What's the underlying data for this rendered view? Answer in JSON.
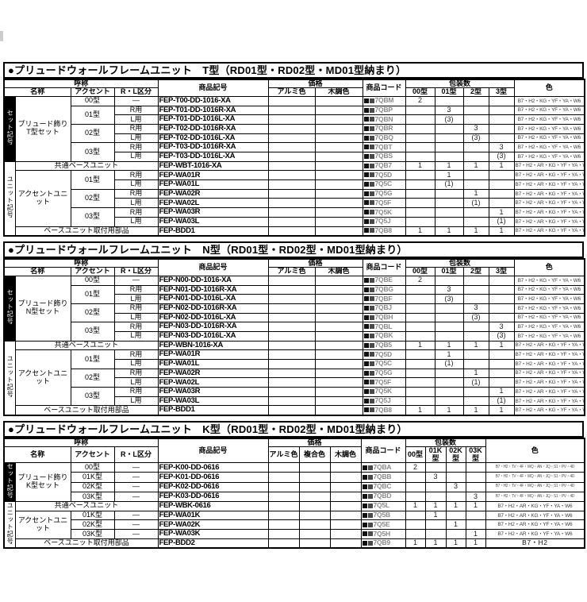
{
  "labels": {
    "group": "呼称",
    "name": "名称",
    "accent": "アクセント",
    "rl": "R・L区分",
    "sku": "商品記号",
    "price": "価格",
    "code": "商品コード",
    "pack": "包装数",
    "color": "色"
  },
  "icons": {
    "price_band_square": "filled-square placeholder for price band digits"
  },
  "accent_colors": {
    "table_border": "#000000",
    "set_bar_bg": "#000000",
    "set_bar_text": "#ffffff",
    "code_text_grey": "#8a8a8a"
  },
  "sections": [
    {
      "id": "T",
      "title": "●プリュードウォールフレームユニット　T型（RD01型・RD02型・MD01型納まり）",
      "price_cols": [
        "アルミ色",
        "木調色"
      ],
      "pack_cols": [
        "00型",
        "01型",
        "2型",
        "3型"
      ],
      "groups": [
        {
          "label": "セット記号",
          "style": "black",
          "rows": [
            {
              "name": {
                "text": "プリュード飾りT型セット",
                "rowspan": 7
              },
              "accent": {
                "text": "00型",
                "rowspan": 1
              },
              "rl": "—",
              "sku": "FEP-T00-DD-1016-XA",
              "code": "7QBM",
              "pack": [
                "2",
                "",
                "",
                ""
              ],
              "color": "B7・H2・KG・YF・YA・W6"
            },
            {
              "accent": {
                "text": "01型",
                "rowspan": 2
              },
              "rl": "R用",
              "sku": "FEP-T01-DD-1016R-XA",
              "code": "7QBP",
              "pack": [
                "",
                "3",
                "",
                ""
              ],
              "color": "B7・H2・KG・YF・YA・W6"
            },
            {
              "rl": "L用",
              "sku": "FEP-T01-DD-1016L-XA",
              "code": "7QBN",
              "pack": [
                "",
                "(3)",
                "",
                ""
              ],
              "color": "B7・H2・KG・YF・YA・W6"
            },
            {
              "accent": {
                "text": "02型",
                "rowspan": 2
              },
              "rl": "R用",
              "sku": "FEP-T02-DD-1016R-XA",
              "code": "7QBR",
              "pack": [
                "",
                "",
                "3",
                ""
              ],
              "color": "B7・H2・KG・YF・YA・W6"
            },
            {
              "rl": "L用",
              "sku": "FEP-T02-DD-1016L-XA",
              "code": "7QBQ",
              "pack": [
                "",
                "",
                "(3)",
                ""
              ],
              "color": "B7・H2・KG・YF・YA・W6"
            },
            {
              "accent": {
                "text": "03型",
                "rowspan": 2
              },
              "rl": "R用",
              "sku": "FEP-T03-DD-1016R-XA",
              "code": "7QBT",
              "pack": [
                "",
                "",
                "",
                "3"
              ],
              "color": "B7・H2・KG・YF・YA・W6"
            },
            {
              "rl": "L用",
              "sku": "FEP-T03-DD-1016L-XA",
              "code": "7QBS",
              "pack": [
                "",
                "",
                "",
                "(3)"
              ],
              "color": "B7・H2・KG・YF・YA・W6"
            }
          ]
        },
        {
          "label": "ユニット記号",
          "style": "white",
          "rows": [
            {
              "span_label": "共通ベースユニット",
              "sku": "FEP-WBT-1016-XA",
              "code": "7QB7",
              "pack": [
                "1",
                "1",
                "1",
                "1"
              ],
              "color": "B7・H2・AR・KG・YF・YA・W6"
            },
            {
              "name": {
                "text": "アクセントユニット",
                "rowspan": 6
              },
              "accent": {
                "text": "01型",
                "rowspan": 2
              },
              "rl": "R用",
              "sku": "FEP-WA01R",
              "code": "7Q5D",
              "pack": [
                "",
                "1",
                "",
                ""
              ],
              "color": "B7・H2・AR・KG・YF・YA・W6"
            },
            {
              "rl": "L用",
              "sku": "FEP-WA01L",
              "code": "7Q5C",
              "pack": [
                "",
                "(1)",
                "",
                ""
              ],
              "color": "B7・H2・AR・KG・YF・YA・W6"
            },
            {
              "accent": {
                "text": "02型",
                "rowspan": 2
              },
              "rl": "R用",
              "sku": "FEP-WA02R",
              "code": "7Q5G",
              "pack": [
                "",
                "",
                "1",
                ""
              ],
              "color": "B7・H2・AR・KG・YF・YA・W6"
            },
            {
              "rl": "L用",
              "sku": "FEP-WA02L",
              "code": "7Q5F",
              "pack": [
                "",
                "",
                "(1)",
                ""
              ],
              "color": "B7・H2・AR・KG・YF・YA・W6"
            },
            {
              "accent": {
                "text": "03型",
                "rowspan": 2
              },
              "rl": "R用",
              "sku": "FEP-WA03R",
              "code": "7Q5K",
              "pack": [
                "",
                "",
                "",
                "1"
              ],
              "color": "B7・H2・AR・KG・YF・YA・W6"
            },
            {
              "rl": "L用",
              "sku": "FEP-WA03L",
              "code": "7Q5J",
              "pack": [
                "",
                "",
                "",
                "(1)"
              ],
              "color": "B7・H2・AR・KG・YF・YA・W6"
            },
            {
              "span_label": "ベースユニット取付用部品",
              "sku": "FEP-BDD1",
              "code": "7QB8",
              "pack": [
                "1",
                "1",
                "1",
                "1"
              ],
              "color": "B7・H2・AR・KG・YF・YA・W6"
            }
          ]
        }
      ]
    },
    {
      "id": "N",
      "title": "●プリュードウォールフレームユニット　N型（RD01型・RD02型・MD01型納まり）",
      "price_cols": [
        "アルミ色",
        "木調色"
      ],
      "pack_cols": [
        "00型",
        "01型",
        "2型",
        "3型"
      ],
      "groups": [
        {
          "label": "セット記号",
          "style": "black",
          "rows": [
            {
              "name": {
                "text": "プリュード飾りN型セット",
                "rowspan": 7
              },
              "accent": {
                "text": "00型",
                "rowspan": 1
              },
              "rl": "—",
              "sku": "FEP-N00-DD-1016-XA",
              "code": "7QBE",
              "pack": [
                "2",
                "",
                "",
                ""
              ],
              "color": "B7・H2・KG・YF・YA・W6"
            },
            {
              "accent": {
                "text": "01型",
                "rowspan": 2
              },
              "rl": "R用",
              "sku": "FEP-N01-DD-1016R-XA",
              "code": "7QBG",
              "pack": [
                "",
                "3",
                "",
                ""
              ],
              "color": "B7・H2・KG・YF・YA・W6"
            },
            {
              "rl": "L用",
              "sku": "FEP-N01-DD-1016L-XA",
              "code": "7QBF",
              "pack": [
                "",
                "(3)",
                "",
                ""
              ],
              "color": "B7・H2・KG・YF・YA・W6"
            },
            {
              "accent": {
                "text": "02型",
                "rowspan": 2
              },
              "rl": "R用",
              "sku": "FEP-N02-DD-1016R-XA",
              "code": "7QBJ",
              "pack": [
                "",
                "",
                "3",
                ""
              ],
              "color": "B7・H2・KG・YF・YA・W6"
            },
            {
              "rl": "L用",
              "sku": "FEP-N02-DD-1016L-XA",
              "code": "7QBH",
              "pack": [
                "",
                "",
                "(3)",
                ""
              ],
              "color": "B7・H2・KG・YF・YA・W6"
            },
            {
              "accent": {
                "text": "03型",
                "rowspan": 2
              },
              "rl": "R用",
              "sku": "FEP-N03-DD-1016R-XA",
              "code": "7QBL",
              "pack": [
                "",
                "",
                "",
                "3"
              ],
              "color": "B7・H2・KG・YF・YA・W6"
            },
            {
              "rl": "L用",
              "sku": "FEP-N03-DD-1016L-XA",
              "code": "7QBK",
              "pack": [
                "",
                "",
                "",
                "(3)"
              ],
              "color": "B7・H2・KG・YF・YA・W6"
            }
          ]
        },
        {
          "label": "ユニット記号",
          "style": "white",
          "rows": [
            {
              "span_label": "共通ベースユニット",
              "sku": "FEP-WBN-1016-XA",
              "code": "7QB5",
              "pack": [
                "1",
                "1",
                "1",
                "1"
              ],
              "color": "B7・H2・AR・KG・YF・YA・W6"
            },
            {
              "name": {
                "text": "アクセントユニット",
                "rowspan": 6
              },
              "accent": {
                "text": "01型",
                "rowspan": 2
              },
              "rl": "R用",
              "sku": "FEP-WA01R",
              "code": "7Q5D",
              "pack": [
                "",
                "1",
                "",
                ""
              ],
              "color": "B7・H2・AR・KG・YF・YA・W6"
            },
            {
              "rl": "L用",
              "sku": "FEP-WA01L",
              "code": "7Q5C",
              "pack": [
                "",
                "(1)",
                "",
                ""
              ],
              "color": "B7・H2・AR・KG・YF・YA・W6"
            },
            {
              "accent": {
                "text": "02型",
                "rowspan": 2
              },
              "rl": "R用",
              "sku": "FEP-WA02R",
              "code": "7Q5G",
              "pack": [
                "",
                "",
                "1",
                ""
              ],
              "color": "B7・H2・AR・KG・YF・YA・W6"
            },
            {
              "rl": "L用",
              "sku": "FEP-WA02L",
              "code": "7Q5F",
              "pack": [
                "",
                "",
                "(1)",
                ""
              ],
              "color": "B7・H2・AR・KG・YF・YA・W6"
            },
            {
              "accent": {
                "text": "03型",
                "rowspan": 2
              },
              "rl": "R用",
              "sku": "FEP-WA03R",
              "code": "7Q5K",
              "pack": [
                "",
                "",
                "",
                "1"
              ],
              "color": "B7・H2・AR・KG・YF・YA・W6"
            },
            {
              "rl": "L用",
              "sku": "FEP-WA03L",
              "code": "7Q5J",
              "pack": [
                "",
                "",
                "",
                "(1)"
              ],
              "color": "B7・H2・AR・KG・YF・YA・W6"
            },
            {
              "span_label": "ベースユニット取付用部品",
              "sku": "FEP-BDD1",
              "code": "7QB8",
              "pack": [
                "1",
                "1",
                "1",
                "1"
              ],
              "color": "B7・H2・AR・KG・YF・YA・W6"
            }
          ]
        }
      ]
    },
    {
      "id": "K",
      "title": "●プリュードウォールフレームユニット　K型（RD01型・RD02型・MD01型納まり）",
      "price_cols": [
        "アルミ色",
        "複合色",
        "木調色"
      ],
      "pack_cols": [
        "00型",
        "01K型",
        "02K型",
        "03K型"
      ],
      "groups": [
        {
          "label": "セット記号",
          "style": "black",
          "rows": [
            {
              "name": {
                "text": "プリュード飾りK型セット",
                "rowspan": 4
              },
              "accent": {
                "text": "00型",
                "rowspan": 1
              },
              "rl": "—",
              "sku": "FEP-K00-DD-0616",
              "code": "7QBA",
              "pack": [
                "2",
                "",
                "",
                ""
              ],
              "color": "B7・H2・TV・4F・WQ・AN・JQ・S1・PV・4D",
              "color_size": "xs"
            },
            {
              "accent": {
                "text": "01K型",
                "rowspan": 1
              },
              "rl": "—",
              "sku": "FEP-K01-DD-0616",
              "code": "7QBB",
              "pack": [
                "",
                "3",
                "",
                ""
              ],
              "color": "B7・H2・TV・4F・WQ・AN・JQ・S1・PV・4D",
              "color_size": "xs"
            },
            {
              "accent": {
                "text": "02K型",
                "rowspan": 1
              },
              "rl": "—",
              "sku": "FEP-K02-DD-0616",
              "code": "7QBC",
              "pack": [
                "",
                "",
                "3",
                ""
              ],
              "color": "B7・H2・TV・4F・WQ・AN・JQ・S1・PV・4D",
              "color_size": "xs"
            },
            {
              "accent": {
                "text": "03K型",
                "rowspan": 1
              },
              "rl": "—",
              "sku": "FEP-K03-DD-0616",
              "code": "7QBD",
              "pack": [
                "",
                "",
                "",
                "3"
              ],
              "color": "B7・H2・TV・4F・WQ・AN・JQ・S1・PV・4D",
              "color_size": "xs"
            }
          ]
        },
        {
          "label": "ユニット記号",
          "style": "white",
          "rows": [
            {
              "span_label": "共通ベースユニット",
              "sku": "FEP-WBK-0616",
              "code": "7Q5L",
              "pack": [
                "1",
                "1",
                "1",
                "1"
              ],
              "color": "B7・H2・AR・KG・YF・YA・W6"
            },
            {
              "name": {
                "text": "アクセントユニット",
                "rowspan": 3
              },
              "accent": {
                "text": "01K型",
                "rowspan": 1
              },
              "rl": "—",
              "sku": "FEP-WA01K",
              "code": "7Q5B",
              "pack": [
                "",
                "1",
                "",
                ""
              ],
              "color": "B7・H2・AR・KG・YF・YA・W6"
            },
            {
              "accent": {
                "text": "02K型",
                "rowspan": 1
              },
              "rl": "—",
              "sku": "FEP-WA02K",
              "code": "7Q5E",
              "pack": [
                "",
                "",
                "1",
                ""
              ],
              "color": "B7・H2・AR・KG・YF・YA・W6"
            },
            {
              "accent": {
                "text": "03K型",
                "rowspan": 1
              },
              "rl": "—",
              "sku": "FEP-WA03K",
              "code": "7Q5H",
              "pack": [
                "",
                "",
                "",
                "1"
              ],
              "color": "B7・H2・AR・KG・YF・YA・W6"
            },
            {
              "span_label": "ベースユニット取付用部品",
              "sku": "FEP-BDD2",
              "code": "7QB9",
              "pack": [
                "1",
                "1",
                "1",
                "1"
              ],
              "color": "B7・H2",
              "color_size": "lg"
            }
          ]
        }
      ]
    }
  ]
}
